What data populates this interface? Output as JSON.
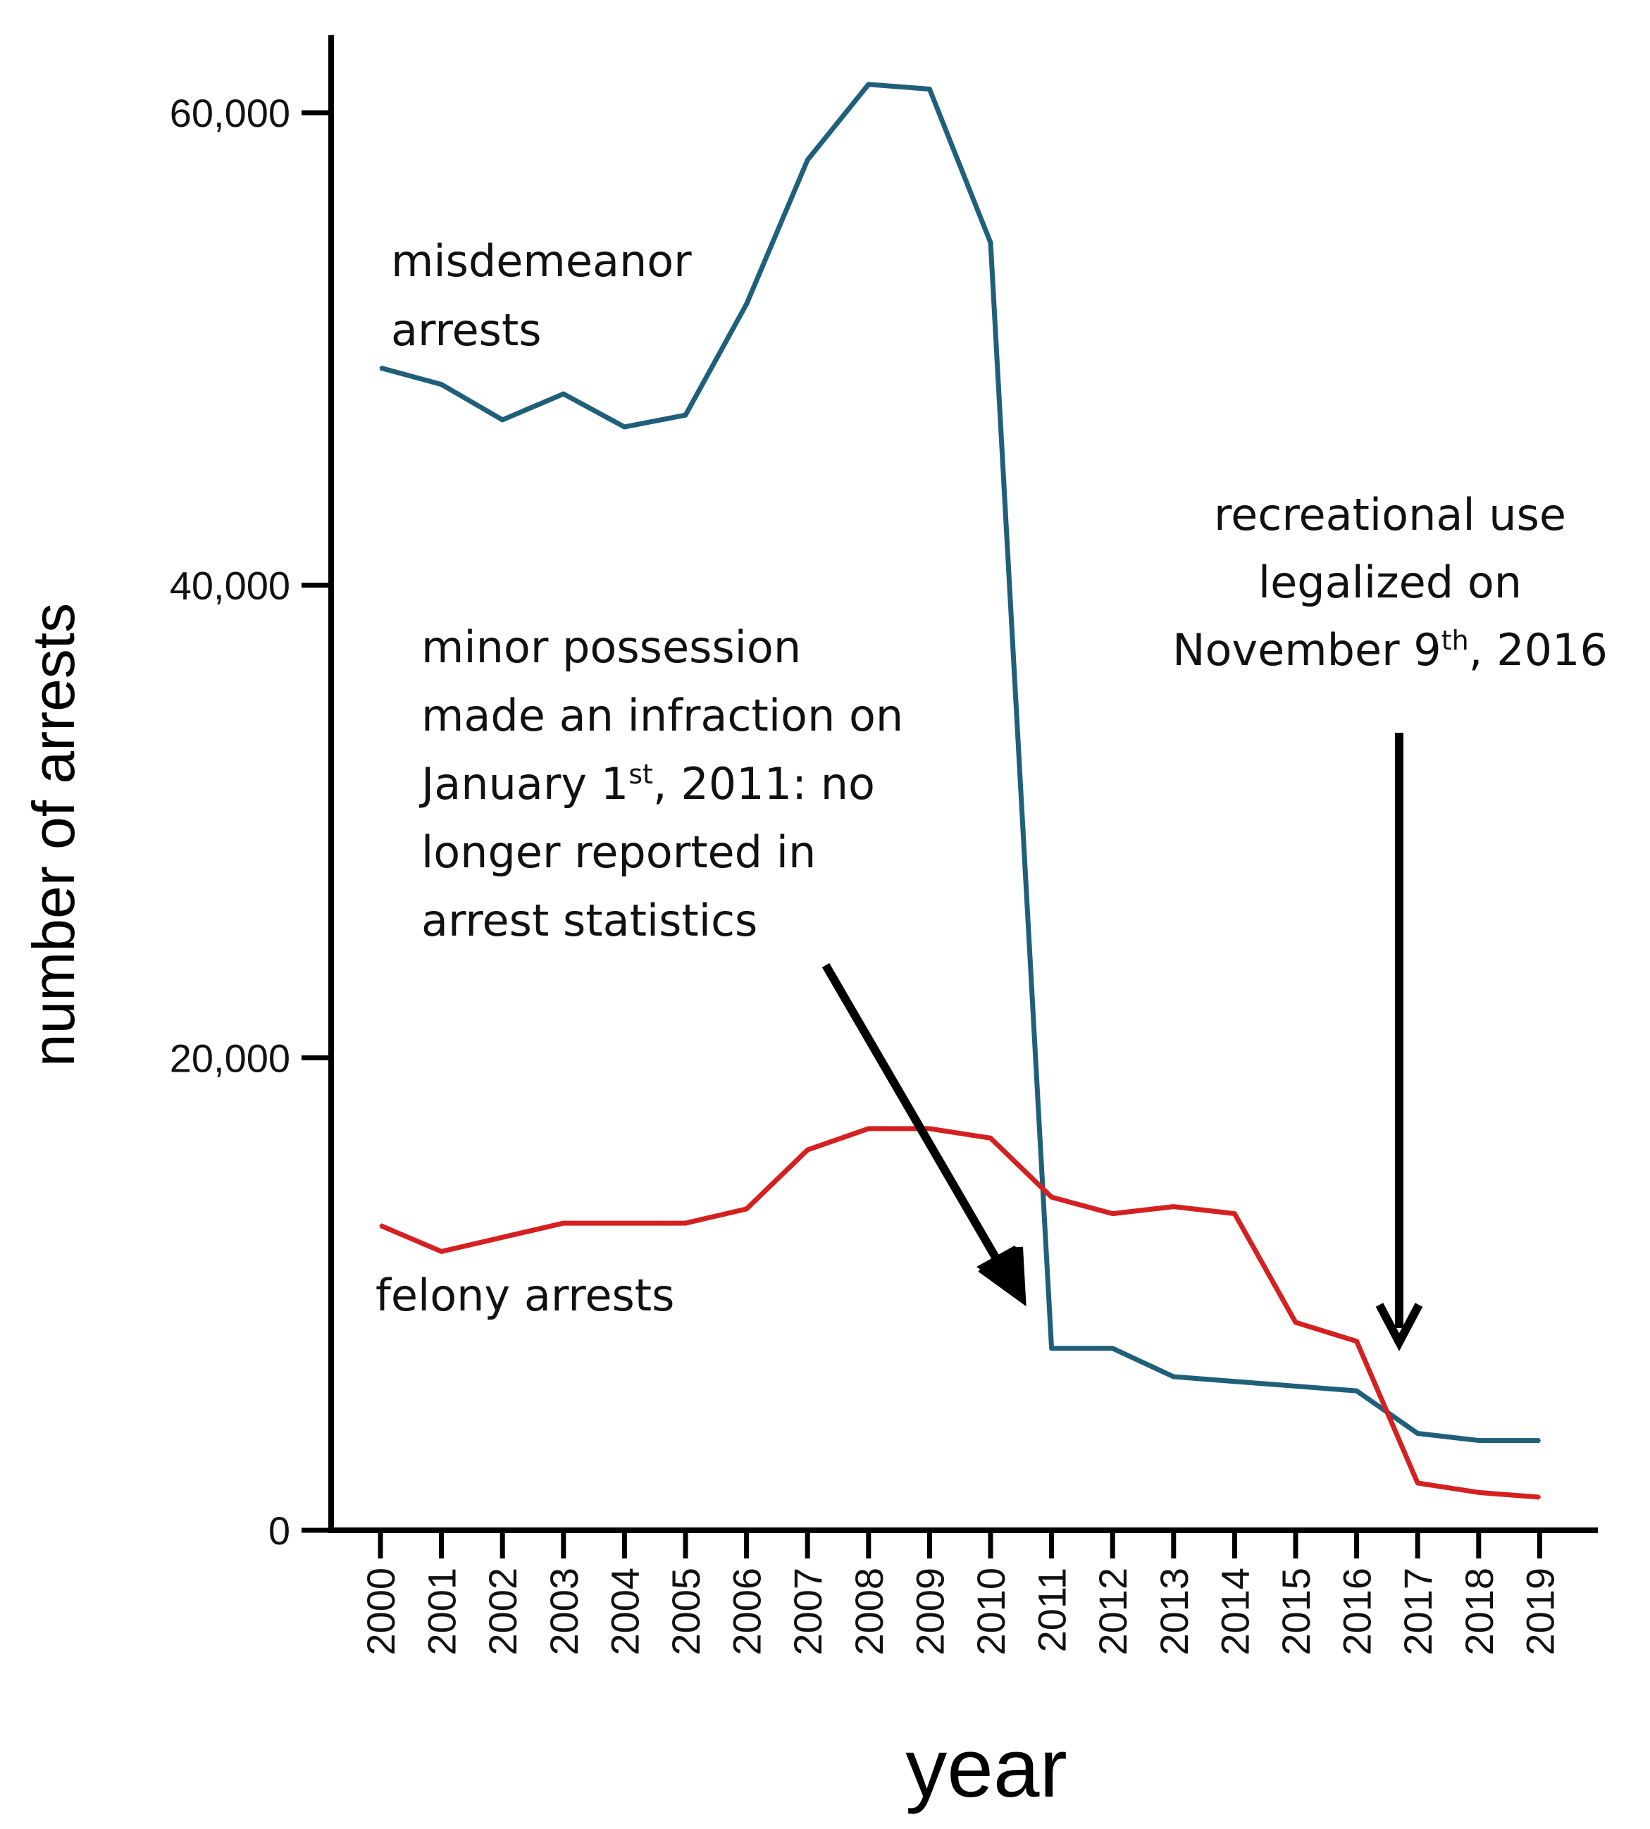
{
  "chart_data": {
    "type": "line",
    "xlabel": "year",
    "ylabel": "number of arrests",
    "ylim": [
      0,
      63000
    ],
    "yticks": [
      0,
      20000,
      40000,
      60000
    ],
    "ytick_labels": [
      "0",
      "20,000",
      "40,000",
      "60,000"
    ],
    "categories": [
      "2000",
      "2001",
      "2002",
      "2003",
      "2004",
      "2005",
      "2006",
      "2007",
      "2008",
      "2009",
      "2010",
      "2011",
      "2012",
      "2013",
      "2014",
      "2015",
      "2016",
      "2017",
      "2018",
      "2019"
    ],
    "grid": false,
    "series": [
      {
        "name": "misdemeanor arrests",
        "color": "#1f5f7a",
        "values": [
          49200,
          48500,
          47000,
          48100,
          46700,
          47200,
          51900,
          58000,
          61200,
          61000,
          54500,
          7700,
          7700,
          6500,
          6300,
          6100,
          5900,
          4100,
          3800,
          3800
        ]
      },
      {
        "name": "felony arrests",
        "color": "#d42020",
        "values": [
          12900,
          11800,
          12400,
          13000,
          13000,
          13000,
          13600,
          16100,
          17000,
          17000,
          16600,
          14100,
          13400,
          13700,
          13400,
          8800,
          8000,
          2000,
          1600,
          1400
        ]
      }
    ],
    "annotations": [
      {
        "id": "infraction",
        "lines": [
          {
            "text": "minor possession"
          },
          {
            "text": "made an infraction on"
          },
          {
            "text": "January 1",
            "sup": "st",
            "after": ", 2011: no"
          },
          {
            "text": "longer reported in"
          },
          {
            "text": "arrest statistics"
          }
        ]
      },
      {
        "id": "legalized",
        "lines": [
          {
            "text": "recreational use"
          },
          {
            "text": "legalized on"
          },
          {
            "text": "November 9",
            "sup": "th",
            "after": ", 2016"
          }
        ]
      }
    ]
  }
}
